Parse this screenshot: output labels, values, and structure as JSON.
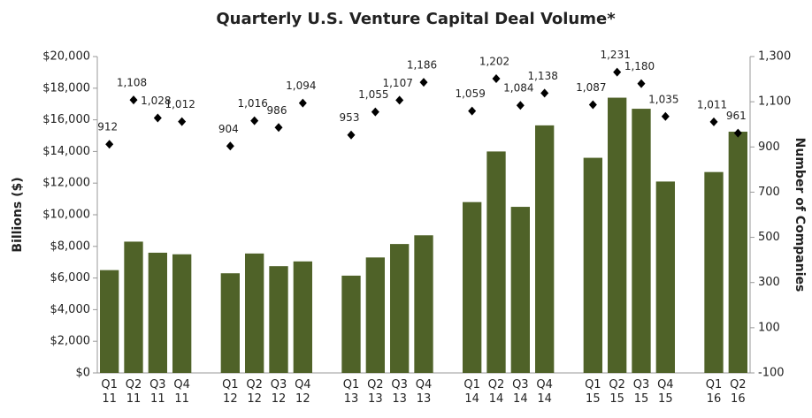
{
  "chart_data": {
    "type": "bar",
    "title": "Quarterly U.S. Venture Capital Deal Volume*",
    "ylabel": "Billions ($)",
    "y2label": "Number of Companies",
    "categories": [
      "Q1 11",
      "Q2 11",
      "Q3 11",
      "Q4 11",
      null,
      "Q1 12",
      "Q2 12",
      "Q3 12",
      "Q4 12",
      null,
      "Q1 13",
      "Q2 13",
      "Q3 13",
      "Q4 13",
      null,
      "Q1 14",
      "Q2 14",
      "Q3 14",
      "Q4 14",
      null,
      "Q1 15",
      "Q2 15",
      "Q3 15",
      "Q4 15",
      null,
      "Q1 16",
      "Q2 16"
    ],
    "series": [
      {
        "color": "#4f6228",
        "values": [
          6500,
          8300,
          7600,
          7500,
          null,
          6300,
          7550,
          6750,
          7050,
          null,
          6150,
          7300,
          8150,
          8700,
          null,
          10800,
          14000,
          10500,
          15650,
          null,
          13600,
          17400,
          16700,
          12100,
          null,
          12700,
          15250
        ]
      },
      {
        "type": "scatter",
        "axis": "y2",
        "color": "#000000",
        "values": [
          912,
          1108,
          1028,
          1012,
          null,
          904,
          1016,
          986,
          1094,
          null,
          953,
          1055,
          1107,
          1186,
          null,
          1059,
          1202,
          1084,
          1138,
          null,
          1087,
          1231,
          1180,
          1035,
          null,
          1011,
          961
        ],
        "value_labels": [
          "912",
          "1,108",
          "1,028",
          "1,012",
          null,
          "904",
          "1,016",
          "986",
          "1,094",
          null,
          "953",
          "1,055",
          "1,107",
          "1,186",
          null,
          "1,059",
          "1,202",
          "1,084",
          "1,138",
          null,
          "1,087",
          "1,231",
          "1,180",
          "1,035",
          null,
          "1,011",
          "961"
        ]
      }
    ],
    "ylim": [
      0,
      20000
    ],
    "yticks": [
      {
        "value": 0,
        "label": "$0"
      },
      {
        "value": 2000,
        "label": "$2,000"
      },
      {
        "value": 4000,
        "label": "$4,000"
      },
      {
        "value": 6000,
        "label": "$6,000"
      },
      {
        "value": 8000,
        "label": "$8,000"
      },
      {
        "value": 10000,
        "label": "$10,000"
      },
      {
        "value": 12000,
        "label": "$12,000"
      },
      {
        "value": 14000,
        "label": "$14,000"
      },
      {
        "value": 16000,
        "label": "$16,000"
      },
      {
        "value": 18000,
        "label": "$18,000"
      },
      {
        "value": 20000,
        "label": "$20,000"
      }
    ],
    "y2lim": [
      -100,
      1300
    ],
    "y2ticks": [
      -100,
      100,
      300,
      500,
      700,
      900,
      {
        "value": 1100,
        "label": "1,100"
      },
      {
        "value": 1300,
        "label": "1,300"
      }
    ],
    "grid": false
  }
}
